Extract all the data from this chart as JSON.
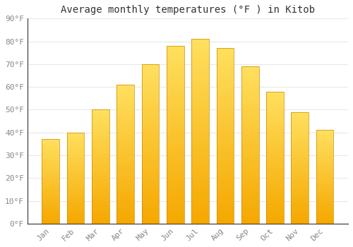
{
  "title": "Average monthly temperatures (°F ) in Kitob",
  "months": [
    "Jan",
    "Feb",
    "Mar",
    "Apr",
    "May",
    "Jun",
    "Jul",
    "Aug",
    "Sep",
    "Oct",
    "Nov",
    "Dec"
  ],
  "values": [
    37,
    40,
    50,
    61,
    70,
    78,
    81,
    77,
    69,
    58,
    49,
    41
  ],
  "bar_color_bottom": "#F5A800",
  "bar_color_top": "#FFE060",
  "ylim": [
    0,
    90
  ],
  "yticks": [
    0,
    10,
    20,
    30,
    40,
    50,
    60,
    70,
    80,
    90
  ],
  "ytick_labels": [
    "0°F",
    "10°F",
    "20°F",
    "30°F",
    "40°F",
    "50°F",
    "60°F",
    "70°F",
    "80°F",
    "90°F"
  ],
  "background_color": "#ffffff",
  "grid_color": "#e8e8e8",
  "title_fontsize": 10,
  "tick_fontsize": 8,
  "tick_color": "#888888",
  "bar_edge_color": "#CC8800"
}
